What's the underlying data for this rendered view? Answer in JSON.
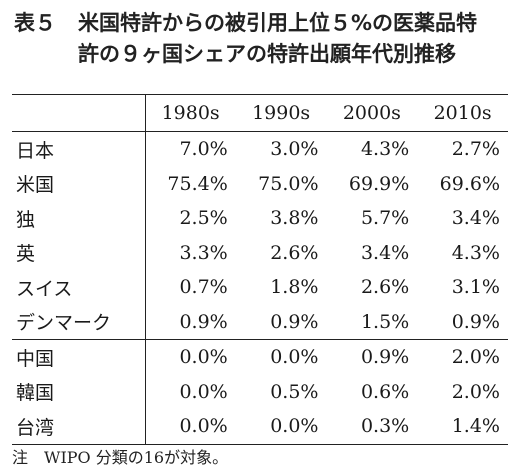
{
  "title": {
    "label": "表５",
    "line1": "米国特許からの被引用上位５%の医薬品特",
    "line2": "許の９ヶ国シェアの特許出願年代別推移"
  },
  "table": {
    "columns": [
      "1980s",
      "1990s",
      "2000s",
      "2010s"
    ],
    "rows": [
      {
        "country": "日本",
        "values": [
          "7.0%",
          "3.0%",
          "4.3%",
          "2.7%"
        ]
      },
      {
        "country": "米国",
        "values": [
          "75.4%",
          "75.0%",
          "69.9%",
          "69.6%"
        ]
      },
      {
        "country": "独",
        "values": [
          "2.5%",
          "3.8%",
          "5.7%",
          "3.4%"
        ]
      },
      {
        "country": "英",
        "values": [
          "3.3%",
          "2.6%",
          "3.4%",
          "4.3%"
        ]
      },
      {
        "country": "スイス",
        "values": [
          "0.7%",
          "1.8%",
          "2.6%",
          "3.1%"
        ]
      },
      {
        "country": "デンマーク",
        "values": [
          "0.9%",
          "0.9%",
          "1.5%",
          "0.9%"
        ]
      },
      {
        "country": "中国",
        "values": [
          "0.0%",
          "0.0%",
          "0.9%",
          "2.0%"
        ]
      },
      {
        "country": "韓国",
        "values": [
          "0.0%",
          "0.5%",
          "0.6%",
          "2.0%"
        ]
      },
      {
        "country": "台湾",
        "values": [
          "0.0%",
          "0.0%",
          "0.3%",
          "1.4%"
        ]
      }
    ]
  },
  "note": "注　WIPO 分類の16が対象。"
}
